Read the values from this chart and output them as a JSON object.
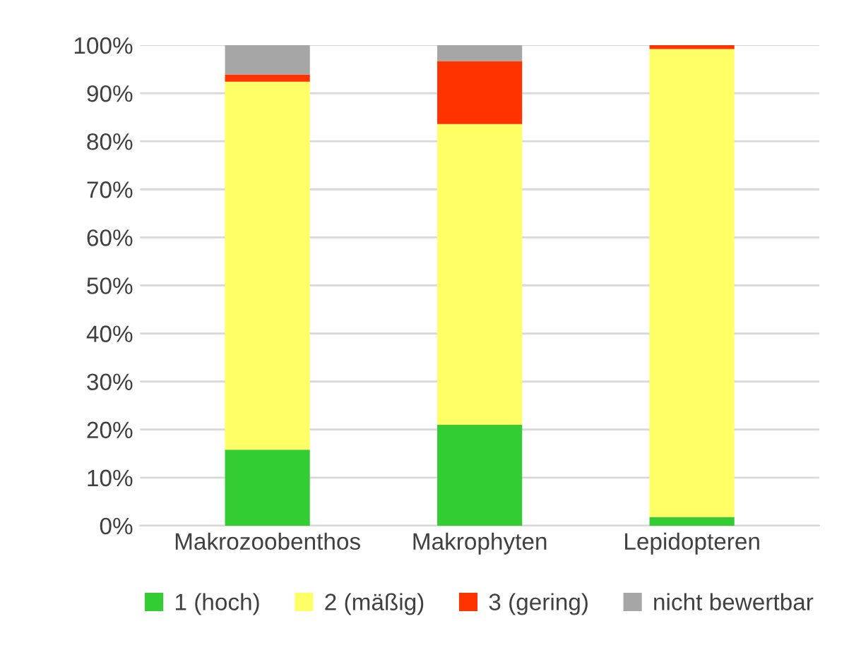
{
  "chart_data": {
    "type": "bar",
    "stacked": true,
    "categories": [
      "Makrozoobenthos",
      "Makrophyten",
      "Lepidopteren"
    ],
    "series": [
      {
        "name": "1 (hoch)",
        "color": "#33cc33",
        "values": [
          15.8,
          21.0,
          1.8
        ]
      },
      {
        "name": "2 (mäßig)",
        "color": "#ffff66",
        "values": [
          76.6,
          62.6,
          97.4
        ]
      },
      {
        "name": "3 (gering)",
        "color": "#ff3300",
        "values": [
          1.5,
          13.1,
          0.8
        ]
      },
      {
        "name": "nicht bewertbar",
        "color": "#a6a6a6",
        "values": [
          6.1,
          3.3,
          0
        ]
      }
    ],
    "ylim": [
      0,
      100
    ],
    "yticks": [
      {
        "value": 0,
        "label": "0%"
      },
      {
        "value": 10,
        "label": "10%"
      },
      {
        "value": 20,
        "label": "20%"
      },
      {
        "value": 30,
        "label": "30%"
      },
      {
        "value": 40,
        "label": "40%"
      },
      {
        "value": 50,
        "label": "50%"
      },
      {
        "value": 60,
        "label": "60%"
      },
      {
        "value": 70,
        "label": "70%"
      },
      {
        "value": 80,
        "label": "80%"
      },
      {
        "value": 90,
        "label": "90%"
      },
      {
        "value": 100,
        "label": "100%"
      }
    ],
    "grid": "y",
    "legend": "bottom"
  }
}
